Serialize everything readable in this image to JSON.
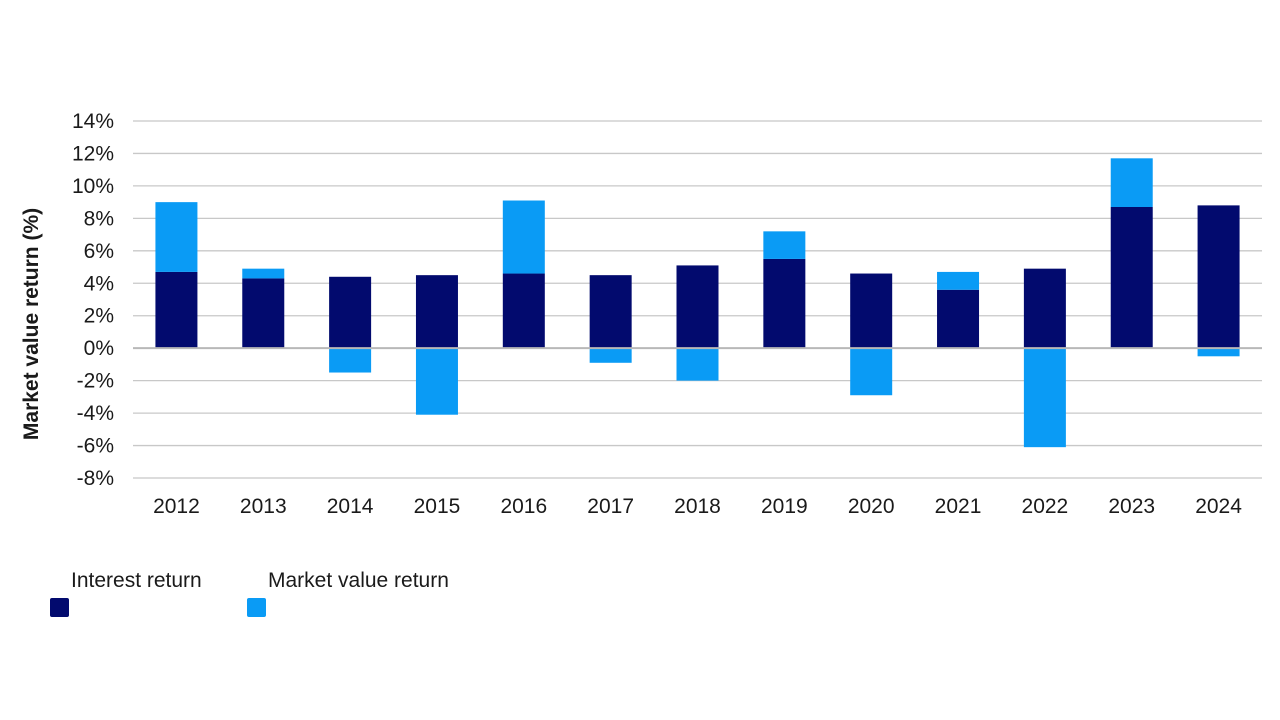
{
  "chart_data": {
    "type": "bar",
    "stacked": true,
    "title": "",
    "xlabel": "",
    "ylabel": "Market value return (%)",
    "ylim": [
      -8,
      14
    ],
    "yticks": [
      14,
      12,
      10,
      8,
      6,
      4,
      2,
      0,
      -2,
      -4,
      -6,
      -8
    ],
    "ytick_format": "percent",
    "grid": true,
    "legend_position": "bottom-left",
    "categories": [
      "2012",
      "2013",
      "2014",
      "2015",
      "2016",
      "2017",
      "2018",
      "2019",
      "2020",
      "2021",
      "2022",
      "2023",
      "2024"
    ],
    "series": [
      {
        "name": "Interest return",
        "color": "#020a6e",
        "values": [
          4.7,
          4.3,
          4.4,
          4.5,
          4.6,
          4.5,
          5.1,
          5.5,
          4.6,
          3.6,
          4.9,
          8.7,
          8.8
        ]
      },
      {
        "name": "Market value return",
        "color": "#0a9bf5",
        "values": [
          4.3,
          0.6,
          -1.5,
          -4.1,
          4.5,
          -0.9,
          -2.0,
          1.7,
          -2.9,
          1.1,
          -6.1,
          3.0,
          -0.5
        ]
      }
    ]
  }
}
